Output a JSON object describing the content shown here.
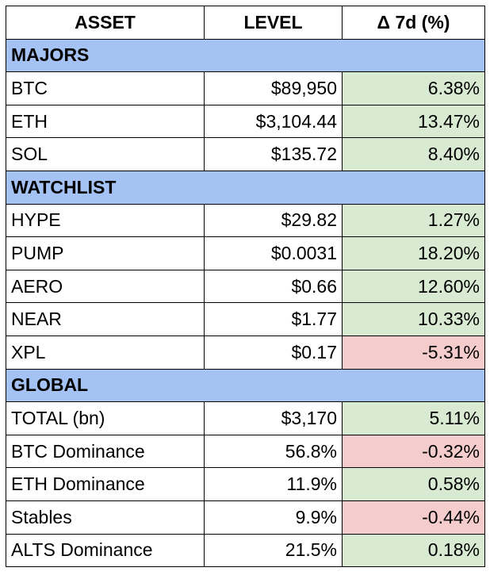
{
  "table": {
    "header": [
      "ASSET",
      "LEVEL",
      "Δ 7d (%)"
    ],
    "sections": [
      {
        "title": "MAJORS",
        "rows": [
          [
            "BTC",
            "$89,950",
            "6.38%"
          ],
          [
            "ETH",
            "$3,104.44",
            "13.47%"
          ],
          [
            "SOL",
            "$135.72",
            "8.40%"
          ]
        ]
      },
      {
        "title": "WATCHLIST",
        "rows": [
          [
            "HYPE",
            "$29.82",
            "1.27%"
          ],
          [
            "PUMP",
            "$0.0031",
            "18.20%"
          ],
          [
            "AERO",
            "$0.66",
            "12.60%"
          ],
          [
            "NEAR",
            "$1.77",
            "10.33%"
          ],
          [
            "XPL",
            "$0.17",
            "-5.31%"
          ]
        ]
      },
      {
        "title": "GLOBAL",
        "rows": [
          [
            "TOTAL (bn)",
            "$3,170",
            "5.11%"
          ],
          [
            "BTC Dominance",
            "56.8%",
            "-0.32%"
          ],
          [
            "ETH Dominance",
            "11.9%",
            "0.58%"
          ],
          [
            "Stables",
            "9.9%",
            "-0.44%"
          ],
          [
            "ALTS Dominance",
            "21.5%",
            "0.18%"
          ]
        ]
      }
    ]
  }
}
